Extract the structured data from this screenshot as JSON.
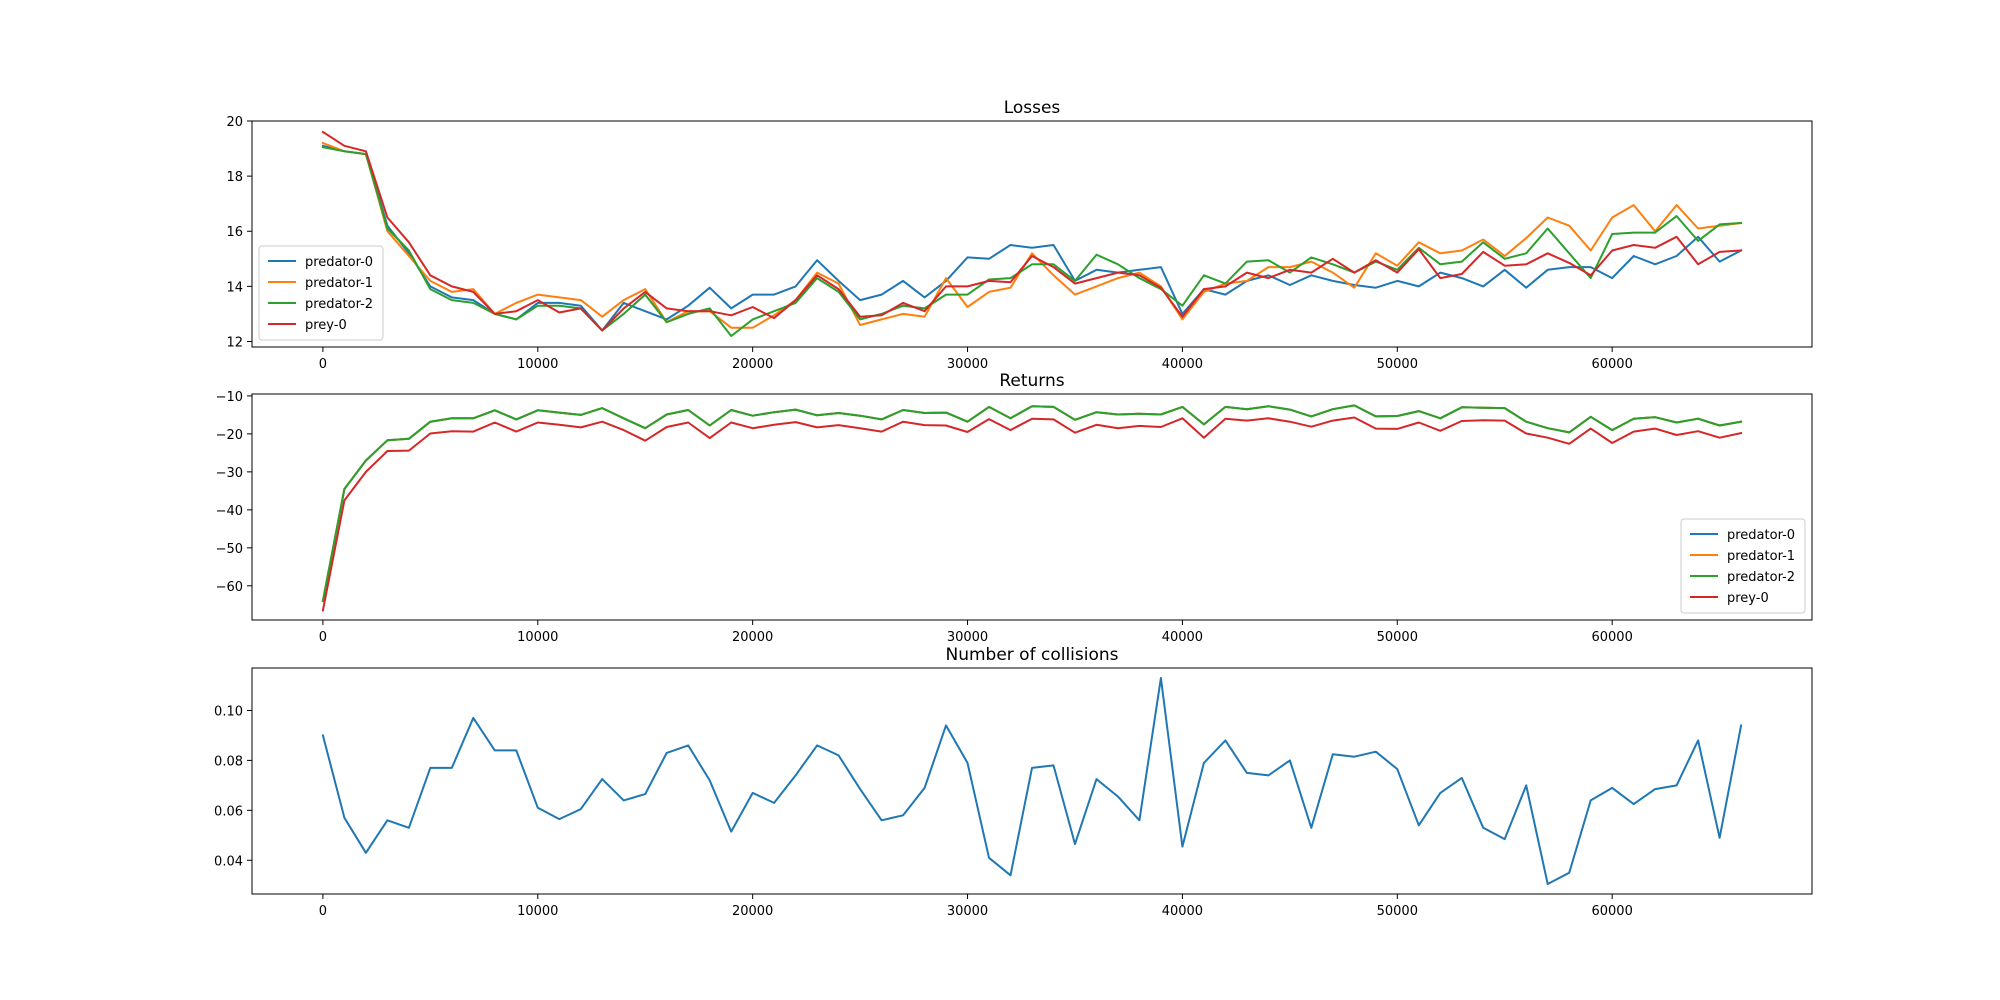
{
  "chart_data": [
    {
      "type": "line",
      "title": "Losses",
      "xlabel": "",
      "ylabel": "",
      "xlim": [
        -3300,
        69300
      ],
      "ylim": [
        11.8,
        20.0
      ],
      "xticks": [
        0,
        10000,
        20000,
        30000,
        40000,
        50000,
        60000
      ],
      "yticks": [
        12,
        14,
        16,
        18,
        20
      ],
      "grid": false,
      "legend": "lower-left",
      "x": [
        0,
        1000,
        2000,
        3000,
        4000,
        5000,
        6000,
        7000,
        8000,
        9000,
        10000,
        11000,
        12000,
        13000,
        14000,
        15000,
        16000,
        17000,
        18000,
        19000,
        20000,
        21000,
        22000,
        23000,
        24000,
        25000,
        26000,
        27000,
        28000,
        29000,
        30000,
        31000,
        32000,
        33000,
        34000,
        35000,
        36000,
        37000,
        38000,
        39000,
        40000,
        41000,
        42000,
        43000,
        44000,
        45000,
        46000,
        47000,
        48000,
        49000,
        50000,
        51000,
        52000,
        53000,
        54000,
        55000,
        56000,
        57000,
        58000,
        59000,
        60000,
        61000,
        62000,
        63000,
        64000,
        65000,
        66000
      ],
      "series": [
        {
          "name": "predator-0",
          "color": "#1f77b4",
          "values": [
            19.1,
            18.9,
            18.8,
            16.2,
            15.2,
            14.0,
            13.6,
            13.5,
            13.0,
            12.8,
            13.4,
            13.4,
            13.3,
            12.4,
            13.4,
            13.1,
            12.8,
            13.3,
            13.95,
            13.2,
            13.7,
            13.7,
            14.0,
            14.95,
            14.2,
            13.5,
            13.7,
            14.2,
            13.6,
            14.2,
            15.05,
            15.0,
            15.5,
            15.4,
            15.5,
            14.2,
            14.6,
            14.5,
            14.6,
            14.7,
            13.0,
            13.9,
            13.7,
            14.2,
            14.4,
            14.05,
            14.4,
            14.2,
            14.05,
            13.95,
            14.2,
            14.0,
            14.5,
            14.3,
            14.0,
            14.6,
            13.95,
            14.6,
            14.7,
            14.7,
            14.3,
            15.1,
            14.8,
            15.1,
            15.8,
            14.9,
            15.3
          ]
        },
        {
          "name": "predator-1",
          "color": "#ff7f0e",
          "values": [
            19.2,
            18.9,
            18.8,
            16.0,
            15.1,
            14.2,
            13.8,
            13.9,
            13.0,
            13.4,
            13.7,
            13.6,
            13.5,
            12.9,
            13.5,
            13.9,
            12.7,
            13.1,
            13.1,
            12.5,
            12.5,
            12.95,
            13.5,
            14.5,
            14.1,
            12.6,
            12.8,
            13.0,
            12.9,
            14.3,
            13.25,
            13.8,
            13.95,
            15.2,
            14.4,
            13.7,
            14.0,
            14.3,
            14.5,
            14.0,
            12.8,
            13.8,
            14.1,
            14.2,
            14.7,
            14.7,
            14.9,
            14.5,
            13.95,
            15.2,
            14.75,
            15.6,
            15.2,
            15.3,
            15.7,
            15.1,
            15.75,
            16.5,
            16.2,
            15.3,
            16.5,
            16.95,
            16.0,
            16.95,
            16.1,
            16.2,
            16.3
          ]
        },
        {
          "name": "predator-2",
          "color": "#2ca02c",
          "values": [
            19.05,
            18.9,
            18.8,
            16.1,
            15.3,
            13.9,
            13.5,
            13.4,
            13.0,
            12.8,
            13.3,
            13.3,
            13.2,
            12.4,
            13.0,
            13.7,
            12.7,
            13.0,
            13.2,
            12.2,
            12.8,
            13.1,
            13.4,
            14.3,
            13.8,
            12.8,
            13.0,
            13.3,
            13.2,
            13.7,
            13.7,
            14.25,
            14.3,
            14.8,
            14.8,
            14.2,
            15.15,
            14.8,
            14.3,
            13.9,
            13.3,
            14.4,
            14.1,
            14.9,
            14.95,
            14.5,
            15.05,
            14.8,
            14.5,
            14.9,
            14.6,
            15.4,
            14.8,
            14.9,
            15.6,
            15.0,
            15.2,
            16.1,
            15.2,
            14.3,
            15.9,
            15.95,
            15.95,
            16.55,
            15.65,
            16.25,
            16.3
          ]
        },
        {
          "name": "prey-0",
          "color": "#d62728",
          "values": [
            19.6,
            19.1,
            18.9,
            16.5,
            15.6,
            14.4,
            14.0,
            13.8,
            13.0,
            13.1,
            13.5,
            13.05,
            13.2,
            12.4,
            13.2,
            13.8,
            13.2,
            13.1,
            13.1,
            12.95,
            13.25,
            12.85,
            13.5,
            14.4,
            13.9,
            12.9,
            12.95,
            13.4,
            13.1,
            14.0,
            14.0,
            14.2,
            14.15,
            15.1,
            14.7,
            14.1,
            14.3,
            14.5,
            14.4,
            13.95,
            12.9,
            13.9,
            14.0,
            14.5,
            14.3,
            14.6,
            14.5,
            15.0,
            14.5,
            14.95,
            14.5,
            15.35,
            14.3,
            14.45,
            15.25,
            14.75,
            14.8,
            15.2,
            14.85,
            14.4,
            15.3,
            15.5,
            15.4,
            15.8,
            14.8,
            15.25,
            15.3
          ]
        }
      ]
    },
    {
      "type": "line",
      "title": "Returns",
      "xlabel": "",
      "ylabel": "",
      "xlim": [
        -3300,
        69300
      ],
      "ylim": [
        -69.0,
        -9.5
      ],
      "xticks": [
        0,
        10000,
        20000,
        30000,
        40000,
        50000,
        60000
      ],
      "yticks": [
        -60,
        -50,
        -40,
        -30,
        -20,
        -10
      ],
      "grid": false,
      "legend": "lower-right",
      "x": [
        0,
        1000,
        2000,
        3000,
        4000,
        5000,
        6000,
        7000,
        8000,
        9000,
        10000,
        11000,
        12000,
        13000,
        14000,
        15000,
        16000,
        17000,
        18000,
        19000,
        20000,
        21000,
        22000,
        23000,
        24000,
        25000,
        26000,
        27000,
        28000,
        29000,
        30000,
        31000,
        32000,
        33000,
        34000,
        35000,
        36000,
        37000,
        38000,
        39000,
        40000,
        41000,
        42000,
        43000,
        44000,
        45000,
        46000,
        47000,
        48000,
        49000,
        50000,
        51000,
        52000,
        53000,
        54000,
        55000,
        56000,
        57000,
        58000,
        59000,
        60000,
        61000,
        62000,
        63000,
        64000,
        65000,
        66000
      ],
      "series": [
        {
          "name": "predator-0",
          "color": "#1f77b4",
          "values": [
            -64,
            -34.5,
            -27,
            -21.7,
            -21.3,
            -16.8,
            -15.9,
            -15.9,
            -13.8,
            -16.2,
            -13.8,
            -14.4,
            -15.0,
            -13.2,
            -15.9,
            -18.5,
            -14.9,
            -13.7,
            -17.8,
            -13.7,
            -15.2,
            -14.3,
            -13.6,
            -15.1,
            -14.5,
            -15.2,
            -16.2,
            -13.7,
            -14.5,
            -14.4,
            -16.8,
            -12.9,
            -15.9,
            -12.7,
            -12.9,
            -16.3,
            -14.3,
            -14.9,
            -14.7,
            -14.9,
            -12.9,
            -17.5,
            -12.9,
            -13.5,
            -12.7,
            -13.6,
            -15.4,
            -13.5,
            -12.5,
            -15.4,
            -15.3,
            -14.0,
            -15.9,
            -13.0,
            -13.1,
            -13.2,
            -16.8,
            -18.5,
            -19.6,
            -15.5,
            -19.0,
            -16.0,
            -15.6,
            -17.0,
            -16.0,
            -17.8,
            -16.8
          ]
        },
        {
          "name": "predator-1",
          "color": "#ff7f0e",
          "values": [
            -64,
            -34.5,
            -27,
            -21.7,
            -21.3,
            -16.8,
            -15.9,
            -15.9,
            -13.8,
            -16.2,
            -13.8,
            -14.4,
            -15.0,
            -13.2,
            -15.9,
            -18.5,
            -14.9,
            -13.7,
            -17.8,
            -13.7,
            -15.2,
            -14.3,
            -13.6,
            -15.1,
            -14.5,
            -15.2,
            -16.2,
            -13.7,
            -14.5,
            -14.4,
            -16.8,
            -12.9,
            -15.9,
            -12.7,
            -12.9,
            -16.3,
            -14.3,
            -14.9,
            -14.7,
            -14.9,
            -12.9,
            -17.5,
            -12.9,
            -13.5,
            -12.7,
            -13.6,
            -15.4,
            -13.5,
            -12.5,
            -15.4,
            -15.3,
            -14.0,
            -15.9,
            -13.0,
            -13.1,
            -13.2,
            -16.8,
            -18.5,
            -19.6,
            -15.5,
            -19.0,
            -16.0,
            -15.6,
            -17.0,
            -16.0,
            -17.8,
            -16.8
          ]
        },
        {
          "name": "predator-2",
          "color": "#2ca02c",
          "values": [
            -64,
            -34.5,
            -27,
            -21.7,
            -21.3,
            -16.8,
            -15.9,
            -15.9,
            -13.8,
            -16.2,
            -13.8,
            -14.4,
            -15.0,
            -13.2,
            -15.9,
            -18.5,
            -14.9,
            -13.7,
            -17.8,
            -13.7,
            -15.2,
            -14.3,
            -13.6,
            -15.1,
            -14.5,
            -15.2,
            -16.2,
            -13.7,
            -14.5,
            -14.4,
            -16.8,
            -12.9,
            -15.9,
            -12.7,
            -12.9,
            -16.3,
            -14.3,
            -14.9,
            -14.7,
            -14.9,
            -12.9,
            -17.5,
            -12.9,
            -13.5,
            -12.7,
            -13.6,
            -15.4,
            -13.5,
            -12.5,
            -15.4,
            -15.3,
            -14.0,
            -15.9,
            -13.0,
            -13.1,
            -13.2,
            -16.8,
            -18.5,
            -19.6,
            -15.5,
            -19.0,
            -16.0,
            -15.6,
            -17.0,
            -16.0,
            -17.8,
            -16.8
          ]
        },
        {
          "name": "prey-0",
          "color": "#d62728",
          "values": [
            -66.5,
            -37.5,
            -30,
            -24.5,
            -24.4,
            -19.9,
            -19.3,
            -19.4,
            -17.0,
            -19.4,
            -17.0,
            -17.6,
            -18.3,
            -16.8,
            -19.0,
            -21.8,
            -18.2,
            -17.0,
            -21.1,
            -17.0,
            -18.5,
            -17.6,
            -16.9,
            -18.3,
            -17.7,
            -18.5,
            -19.4,
            -16.8,
            -17.7,
            -17.8,
            -19.5,
            -16.1,
            -19.0,
            -16.0,
            -16.2,
            -19.7,
            -17.6,
            -18.5,
            -17.9,
            -18.2,
            -15.9,
            -21.0,
            -16.0,
            -16.5,
            -15.9,
            -16.8,
            -18.1,
            -16.5,
            -15.7,
            -18.6,
            -18.7,
            -17.0,
            -19.2,
            -16.6,
            -16.4,
            -16.5,
            -19.9,
            -21.0,
            -22.6,
            -18.6,
            -22.4,
            -19.4,
            -18.6,
            -20.3,
            -19.3,
            -21.0,
            -19.8
          ]
        }
      ]
    },
    {
      "type": "line",
      "title": "Number of collisions",
      "xlabel": "",
      "ylabel": "",
      "xlim": [
        -3300,
        69300
      ],
      "ylim": [
        0.0265,
        0.117
      ],
      "xticks": [
        0,
        10000,
        20000,
        30000,
        40000,
        50000,
        60000
      ],
      "yticks": [
        0.04,
        0.06,
        0.08,
        0.1
      ],
      "grid": false,
      "legend": "none",
      "x": [
        0,
        1000,
        2000,
        3000,
        4000,
        5000,
        6000,
        7000,
        8000,
        9000,
        10000,
        11000,
        12000,
        13000,
        14000,
        15000,
        16000,
        17000,
        18000,
        19000,
        20000,
        21000,
        22000,
        23000,
        24000,
        25000,
        26000,
        27000,
        28000,
        29000,
        30000,
        31000,
        32000,
        33000,
        34000,
        35000,
        36000,
        37000,
        38000,
        39000,
        40000,
        41000,
        42000,
        43000,
        44000,
        45000,
        46000,
        47000,
        48000,
        49000,
        50000,
        51000,
        52000,
        53000,
        54000,
        55000,
        56000,
        57000,
        58000,
        59000,
        60000,
        61000,
        62000,
        63000,
        64000,
        65000,
        66000
      ],
      "series": [
        {
          "name": "",
          "color": "#1f77b4",
          "values": [
            0.09,
            0.057,
            0.043,
            0.056,
            0.053,
            0.077,
            0.077,
            0.097,
            0.084,
            0.084,
            0.061,
            0.0565,
            0.0605,
            0.0725,
            0.064,
            0.0665,
            0.083,
            0.086,
            0.072,
            0.0515,
            0.067,
            0.063,
            0.074,
            0.086,
            0.082,
            0.0685,
            0.056,
            0.058,
            0.069,
            0.094,
            0.079,
            0.041,
            0.034,
            0.077,
            0.078,
            0.0465,
            0.0725,
            0.0655,
            0.056,
            0.113,
            0.0455,
            0.079,
            0.088,
            0.075,
            0.074,
            0.08,
            0.053,
            0.0825,
            0.0815,
            0.0835,
            0.0765,
            0.054,
            0.067,
            0.073,
            0.053,
            0.0485,
            0.07,
            0.0305,
            0.035,
            0.064,
            0.069,
            0.0625,
            0.0685,
            0.07,
            0.088,
            0.049,
            0.094
          ]
        }
      ]
    }
  ]
}
